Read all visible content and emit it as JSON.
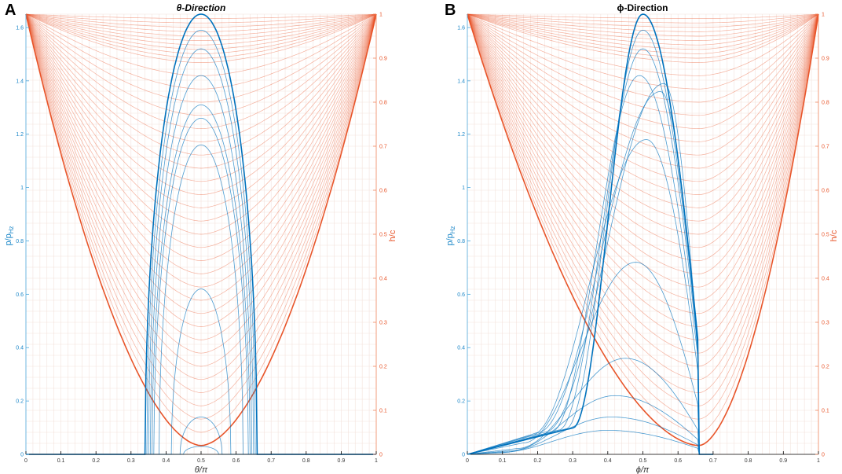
{
  "panels": [
    {
      "letter": "A",
      "title": "θ-Direction",
      "xlabel": "θ/π",
      "ylabel_left": "p/p",
      "ylabel_left_sub": "Hz",
      "ylabel_right": "h/c"
    },
    {
      "letter": "B",
      "title": "ϕ-Direction",
      "xlabel": "ϕ/π",
      "ylabel_left": "p/p",
      "ylabel_left_sub": "Hz",
      "ylabel_right": "h/c"
    }
  ],
  "colors": {
    "pressure": "#0072BD",
    "film": "#E8552A",
    "grid": "#f3e2dc",
    "axis": "#000000"
  },
  "chart_data": [
    {
      "type": "line",
      "title": "θ-Direction",
      "xlabel": "θ/π",
      "ylabel": "p/p_Hz",
      "ylabel_right": "h/c",
      "xlim": [
        0,
        1
      ],
      "ylim": [
        0,
        1.65
      ],
      "ylim_right": [
        0,
        1
      ],
      "xticks": [
        0,
        0.1,
        0.2,
        0.3,
        0.4,
        0.5,
        0.6,
        0.7,
        0.8,
        0.9,
        1
      ],
      "yticks": [
        0,
        0.2,
        0.4,
        0.6,
        0.8,
        1,
        1.2,
        1.4,
        1.6
      ],
      "yticks_right": [
        0,
        0.1,
        0.2,
        0.3,
        0.4,
        0.5,
        0.6,
        0.7,
        0.8,
        0.9,
        1
      ],
      "grid": true,
      "pressure_curves": {
        "axis": "left",
        "center": 0.5,
        "peaks": [
          1.65,
          1.59,
          1.52,
          1.42,
          1.31,
          1.26,
          1.16,
          0.62,
          0.14,
          0.03
        ],
        "half_widths": [
          0.16,
          0.155,
          0.15,
          0.145,
          0.14,
          0.135,
          0.12,
          0.085,
          0.06,
          0.05
        ]
      },
      "film_thickness_curves": {
        "axis": "right",
        "count": 40,
        "value_at_x0": 1,
        "value_at_x1": 1,
        "minima": [
          0.02,
          0.05,
          0.08,
          0.11,
          0.14,
          0.17,
          0.2,
          0.23,
          0.26,
          0.29,
          0.32,
          0.35,
          0.38,
          0.41,
          0.44,
          0.47,
          0.5,
          0.53,
          0.56,
          0.59,
          0.62,
          0.65,
          0.68,
          0.71,
          0.74,
          0.77,
          0.8,
          0.83,
          0.86,
          0.89,
          0.9,
          0.91,
          0.92,
          0.93,
          0.94,
          0.95,
          0.96,
          0.97,
          0.98,
          0.99
        ]
      }
    },
    {
      "type": "line",
      "title": "ϕ-Direction",
      "xlabel": "ϕ/π",
      "ylabel": "p/p_Hz",
      "ylabel_right": "h/c",
      "xlim": [
        0,
        1
      ],
      "ylim": [
        0,
        1.65
      ],
      "ylim_right": [
        0,
        1
      ],
      "xticks": [
        0,
        0.1,
        0.2,
        0.3,
        0.4,
        0.5,
        0.6,
        0.7,
        0.8,
        0.9,
        1
      ],
      "yticks": [
        0,
        0.2,
        0.4,
        0.6,
        0.8,
        1,
        1.2,
        1.4,
        1.6
      ],
      "yticks_right": [
        0,
        0.1,
        0.2,
        0.3,
        0.4,
        0.5,
        0.6,
        0.7,
        0.8,
        0.9,
        1
      ],
      "grid": true,
      "pressure_curves": {
        "axis": "left",
        "peaks": [
          1.65,
          1.59,
          1.52,
          1.42,
          1.39,
          1.36,
          1.18,
          0.72,
          0.36,
          0.22,
          0.14,
          0.09
        ],
        "peak_x": [
          0.5,
          0.5,
          0.5,
          0.49,
          0.56,
          0.55,
          0.51,
          0.48,
          0.45,
          0.42,
          0.41,
          0.4
        ],
        "cutoff_x": 0.66
      },
      "film_thickness_curves": {
        "axis": "right",
        "count": 40,
        "value_at_x0": 1,
        "value_at_x1": 1,
        "minimum_x": 0.66,
        "minima": [
          0.02,
          0.05,
          0.08,
          0.11,
          0.14,
          0.17,
          0.2,
          0.23,
          0.26,
          0.29,
          0.32,
          0.35,
          0.38,
          0.41,
          0.44,
          0.47,
          0.5,
          0.53,
          0.56,
          0.59,
          0.62,
          0.65,
          0.68,
          0.71,
          0.74,
          0.77,
          0.8,
          0.83,
          0.86,
          0.89,
          0.9,
          0.91,
          0.92,
          0.93,
          0.94,
          0.95,
          0.96,
          0.97,
          0.98,
          0.99
        ]
      }
    }
  ]
}
